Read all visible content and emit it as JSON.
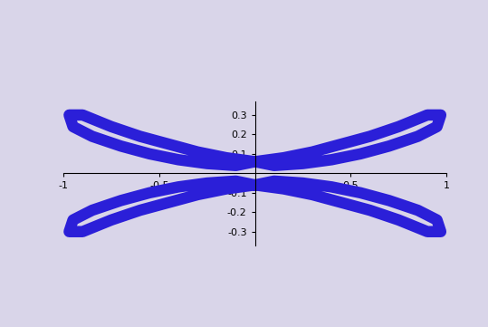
{
  "chart_data": {
    "type": "line",
    "color": "#2b1fd8",
    "grid": false,
    "series": [
      {
        "x": [
          0.0,
          0.15,
          0.3,
          0.45,
          0.6,
          0.75,
          0.9,
          0.97,
          0.95,
          0.85,
          0.7,
          0.55,
          0.4,
          0.25,
          0.1,
          0.0
        ],
        "values": [
          0.06,
          0.08,
          0.11,
          0.15,
          0.19,
          0.24,
          0.3,
          0.3,
          0.24,
          0.19,
          0.14,
          0.1,
          0.07,
          0.05,
          0.04,
          0.06
        ]
      },
      {
        "x": [
          0.0,
          0.15,
          0.3,
          0.45,
          0.6,
          0.75,
          0.9,
          0.97,
          0.95,
          0.85,
          0.7,
          0.55,
          0.4,
          0.25,
          0.1,
          0.0
        ],
        "values": [
          -0.06,
          -0.08,
          -0.11,
          -0.15,
          -0.19,
          -0.24,
          -0.3,
          -0.3,
          -0.24,
          -0.19,
          -0.14,
          -0.1,
          -0.07,
          -0.05,
          -0.04,
          -0.06
        ]
      },
      {
        "x": [
          0.0,
          -0.15,
          -0.3,
          -0.45,
          -0.6,
          -0.75,
          -0.9,
          -0.97,
          -0.95,
          -0.85,
          -0.7,
          -0.55,
          -0.4,
          -0.25,
          -0.1,
          0.0
        ],
        "values": [
          0.06,
          0.08,
          0.11,
          0.15,
          0.19,
          0.24,
          0.3,
          0.3,
          0.24,
          0.19,
          0.14,
          0.1,
          0.07,
          0.05,
          0.04,
          0.06
        ]
      },
      {
        "x": [
          0.0,
          -0.15,
          -0.3,
          -0.45,
          -0.6,
          -0.75,
          -0.9,
          -0.97,
          -0.95,
          -0.85,
          -0.7,
          -0.55,
          -0.4,
          -0.25,
          -0.1,
          0.0
        ],
        "values": [
          -0.06,
          -0.08,
          -0.11,
          -0.15,
          -0.19,
          -0.24,
          -0.3,
          -0.3,
          -0.24,
          -0.19,
          -0.14,
          -0.1,
          -0.07,
          -0.05,
          -0.04,
          -0.06
        ]
      }
    ],
    "xlim": [
      -1,
      1
    ],
    "xticks": [
      -1,
      -0.5,
      0.5,
      1
    ],
    "ylim": [
      -0.37,
      0.37
    ],
    "yticks": [
      -0.3,
      -0.2,
      -0.1,
      0.1,
      0.2,
      0.3
    ]
  }
}
